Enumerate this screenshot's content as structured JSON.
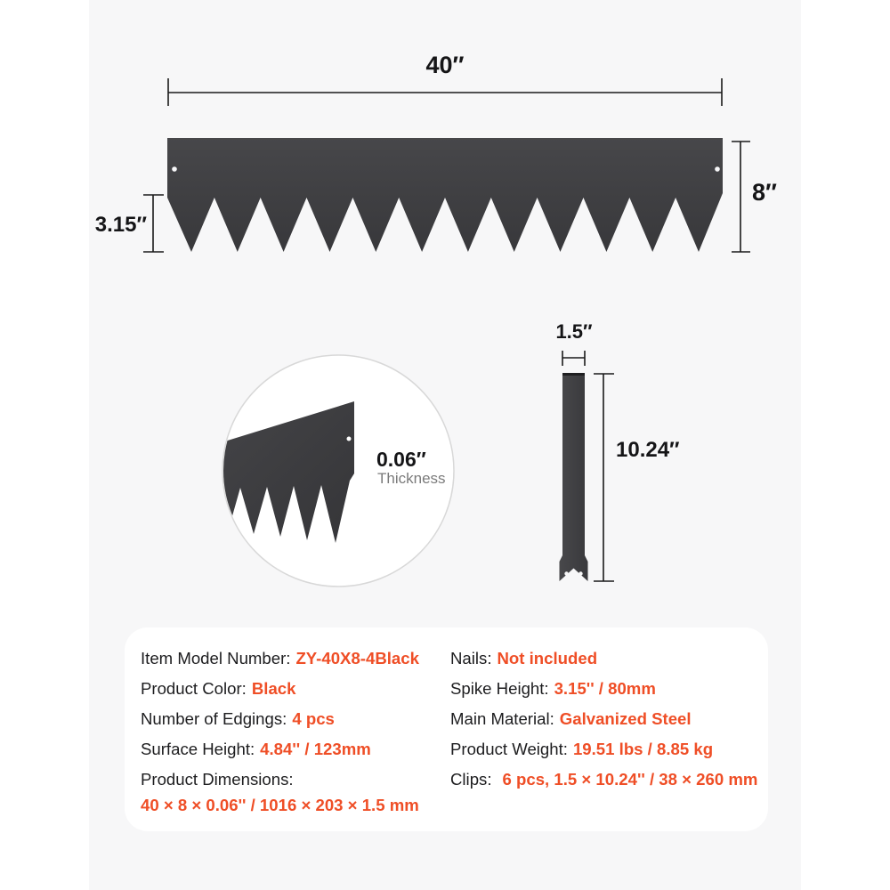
{
  "canvas": {
    "page_bg": "#ffffff",
    "panel_bg": "#f7f7f8",
    "accent": "#ef4e26",
    "steel_color": "#3e3e41"
  },
  "edging_diagram": {
    "width_label": "40″",
    "height_label": "8″",
    "spike_height_label": "3.15″",
    "spike_count": 12
  },
  "thickness_detail": {
    "value": "0.06″",
    "caption": "Thickness"
  },
  "clip_diagram": {
    "width_label": "1.5″",
    "height_label": "10.24″"
  },
  "spec_card": {
    "left_column": [
      {
        "label": "Item Model Number:",
        "value": "ZY-40X8-4Black"
      },
      {
        "label": "Product Color:",
        "value": "Black"
      },
      {
        "label": "Number of Edgings:",
        "value": "4 pcs"
      },
      {
        "label": "Surface Height:",
        "value": "4.84'' / 123mm"
      },
      {
        "label": "Product Dimensions:",
        "value": "40 × 8 × 0.06'' / 1016 × 203 × 1.5 mm"
      }
    ],
    "right_column": [
      {
        "label": "Nails:",
        "value": "Not included"
      },
      {
        "label": "Spike Height:",
        "value": "3.15'' / 80mm"
      },
      {
        "label": "Main Material:",
        "value": "Galvanized Steel"
      },
      {
        "label": "Product Weight:",
        "value": "19.51 lbs / 8.85 kg"
      },
      {
        "label": "Clips:",
        "value": "6 pcs, 1.5 × 10.24'' / 38 × 260 mm"
      }
    ]
  }
}
